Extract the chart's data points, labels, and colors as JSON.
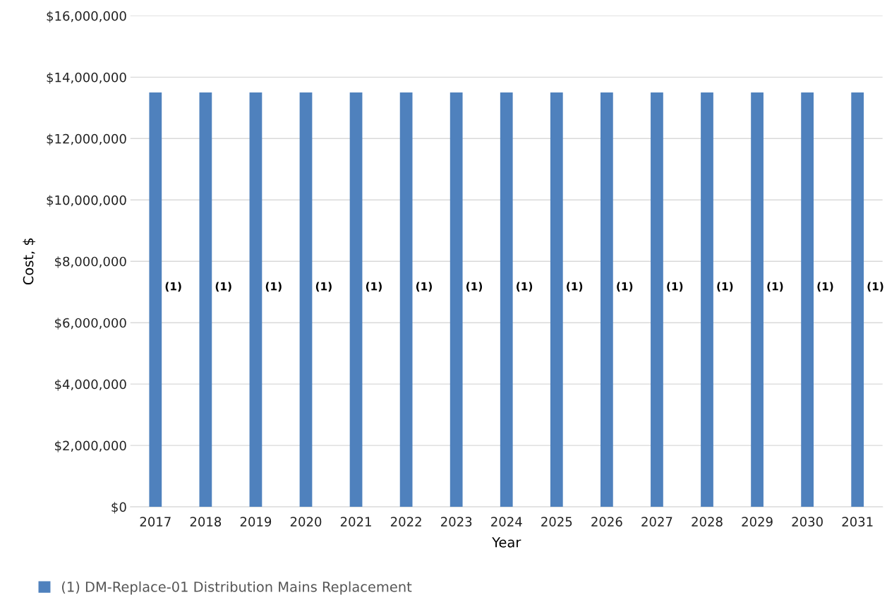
{
  "chart_data": {
    "type": "bar",
    "xlabel": "Year",
    "ylabel": "Cost, $",
    "categories": [
      "2017",
      "2018",
      "2019",
      "2020",
      "2021",
      "2022",
      "2023",
      "2024",
      "2025",
      "2026",
      "2027",
      "2028",
      "2029",
      "2030",
      "2031"
    ],
    "series": [
      {
        "name": "(1) DM-Replace-01 Distribution Mains Replacement",
        "color": "#4f81bd",
        "values": [
          13500000,
          13500000,
          13500000,
          13500000,
          13500000,
          13500000,
          13500000,
          13500000,
          13500000,
          13500000,
          13500000,
          13500000,
          13500000,
          13500000,
          13500000
        ]
      }
    ],
    "annotations": [
      "(1)",
      "(1)",
      "(1)",
      "(1)",
      "(1)",
      "(1)",
      "(1)",
      "(1)",
      "(1)",
      "(1)",
      "(1)",
      "(1)",
      "(1)",
      "(1)",
      "(1)"
    ],
    "ylim": [
      0,
      16000000
    ],
    "yticks": [
      {
        "value": 0,
        "label": "$0"
      },
      {
        "value": 2000000,
        "label": "$2,000,000"
      },
      {
        "value": 4000000,
        "label": "$4,000,000"
      },
      {
        "value": 6000000,
        "label": "$6,000,000"
      },
      {
        "value": 8000000,
        "label": "$8,000,000"
      },
      {
        "value": 10000000,
        "label": "$10,000,000"
      },
      {
        "value": 12000000,
        "label": "$12,000,000"
      },
      {
        "value": 14000000,
        "label": "$14,000,000"
      },
      {
        "value": 16000000,
        "label": "$16,000,000"
      }
    ],
    "grid": "y",
    "legend": "bottom"
  }
}
